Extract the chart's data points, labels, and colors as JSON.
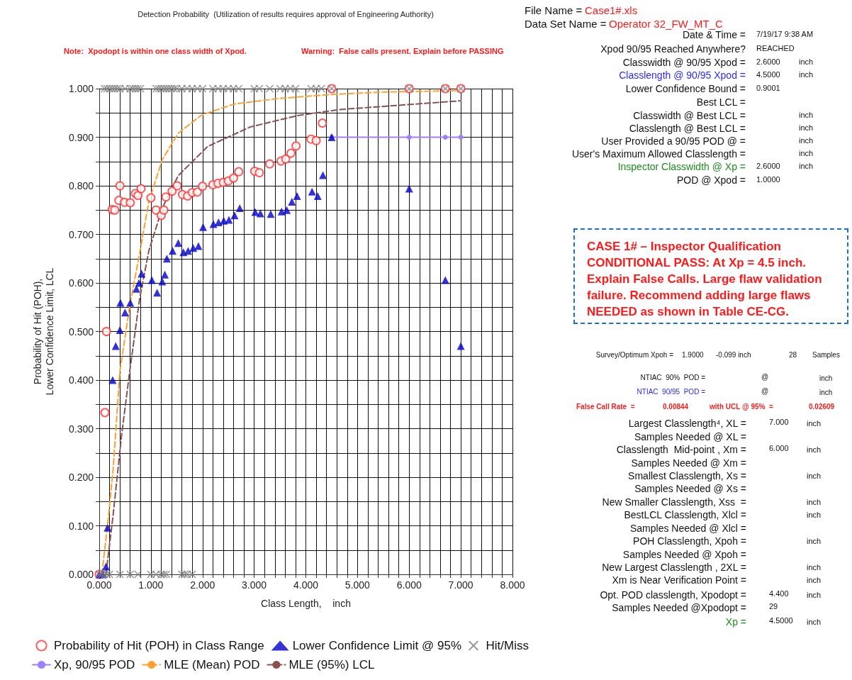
{
  "chart_data": {
    "type": "scatter",
    "title": "Detection Probability  (Utilization of results requires approval of Engineering Authority)",
    "xlabel": "Class Length,    inch",
    "ylabel": "Probability of Hit (POH),\nLower Confidence Limit, LCL",
    "xlim": [
      0,
      8
    ],
    "ylim": [
      0,
      1
    ],
    "xticks": [
      {
        "value": 0,
        "label": "0.000"
      },
      {
        "value": 0.2,
        "label": null
      },
      {
        "value": 0.4,
        "label": null
      },
      {
        "value": 0.6,
        "label": null
      },
      {
        "value": 0.8,
        "label": null
      },
      {
        "value": 1,
        "label": "1.000"
      },
      {
        "value": 1.2,
        "label": null
      },
      {
        "value": 1.4,
        "label": null
      },
      {
        "value": 1.6,
        "label": null
      },
      {
        "value": 1.8,
        "label": null
      },
      {
        "value": 2,
        "label": "2.000"
      },
      {
        "value": 2.2,
        "label": null
      },
      {
        "value": 2.4,
        "label": null
      },
      {
        "value": 2.6,
        "label": null
      },
      {
        "value": 2.8,
        "label": null
      },
      {
        "value": 3,
        "label": "3.000"
      },
      {
        "value": 3.2,
        "label": null
      },
      {
        "value": 3.4,
        "label": null
      },
      {
        "value": 3.6,
        "label": null
      },
      {
        "value": 3.8,
        "label": null
      },
      {
        "value": 4,
        "label": "4.000"
      },
      {
        "value": 4.2,
        "label": null
      },
      {
        "value": 4.4,
        "label": null
      },
      {
        "value": 4.6,
        "label": null
      },
      {
        "value": 4.8,
        "label": null
      },
      {
        "value": 5,
        "label": "5.000"
      },
      {
        "value": 5.2,
        "label": null
      },
      {
        "value": 5.4,
        "label": null
      },
      {
        "value": 5.6,
        "label": null
      },
      {
        "value": 5.8,
        "label": null
      },
      {
        "value": 6,
        "label": "6.000"
      },
      {
        "value": 6.2,
        "label": null
      },
      {
        "value": 6.4,
        "label": null
      },
      {
        "value": 6.6,
        "label": null
      },
      {
        "value": 6.8,
        "label": null
      },
      {
        "value": 7,
        "label": "7.000"
      },
      {
        "value": 7.2,
        "label": null
      },
      {
        "value": 7.4,
        "label": null
      },
      {
        "value": 7.6,
        "label": null
      },
      {
        "value": 7.8,
        "label": null
      },
      {
        "value": 8,
        "label": "8.000"
      }
    ],
    "yticks": [
      {
        "value": 0,
        "label": "0.000"
      },
      {
        "value": 0.05,
        "label": null
      },
      {
        "value": 0.1,
        "label": "0.100"
      },
      {
        "value": 0.15,
        "label": null
      },
      {
        "value": 0.2,
        "label": "0.200"
      },
      {
        "value": 0.25,
        "label": null
      },
      {
        "value": 0.3,
        "label": "0.300"
      },
      {
        "value": 0.35,
        "label": null
      },
      {
        "value": 0.4,
        "label": "0.400"
      },
      {
        "value": 0.45,
        "label": null
      },
      {
        "value": 0.5,
        "label": "0.500"
      },
      {
        "value": 0.55,
        "label": null
      },
      {
        "value": 0.6,
        "label": "0.600"
      },
      {
        "value": 0.65,
        "label": null
      },
      {
        "value": 0.7,
        "label": "0.700"
      },
      {
        "value": 0.75,
        "label": null
      },
      {
        "value": 0.8,
        "label": "0.800"
      },
      {
        "value": 0.85,
        "label": null
      },
      {
        "value": 0.9,
        "label": "0.900"
      },
      {
        "value": 0.95,
        "label": null
      },
      {
        "value": 1,
        "label": "1.000"
      }
    ],
    "grid": true,
    "legend": "bottom",
    "series": [
      {
        "name": "Probability of Hit (POH) in Class Range",
        "marker": "circle",
        "color": "#ff3333",
        "x": [
          0,
          0.11,
          0.14,
          0.25,
          0.3,
          0.38,
          0.4,
          0.49,
          0.6,
          0.7,
          0.75,
          0.81,
          1,
          1.1,
          1.2,
          1.25,
          1.29,
          1.41,
          1.51,
          1.61,
          1.71,
          1.8,
          1.9,
          2,
          2.2,
          2.3,
          2.4,
          2.5,
          2.6,
          2.7,
          3.01,
          3.1,
          3.3,
          3.52,
          3.61,
          3.71,
          3.81,
          4.1,
          4.2,
          4.32,
          4.5,
          6,
          6.7,
          7
        ],
        "values": [
          0,
          0.333,
          0.5,
          0.751,
          0.75,
          0.77,
          0.8,
          0.766,
          0.765,
          0.784,
          0.78,
          0.794,
          0.775,
          0.75,
          0.739,
          0.75,
          0.777,
          0.789,
          0.8,
          0.782,
          0.779,
          0.786,
          0.787,
          0.799,
          0.802,
          0.805,
          0.807,
          0.81,
          0.816,
          0.829,
          0.83,
          0.827,
          0.845,
          0.851,
          0.855,
          0.867,
          0.882,
          0.896,
          0.893,
          0.929,
          1,
          1,
          1,
          1
        ]
      },
      {
        "name": "Lower Confidence Limit @ 95%",
        "marker": "triangle",
        "color": "#0000cc",
        "x": [
          0,
          0.07,
          0.13,
          0.16,
          0.26,
          0.32,
          0.4,
          0.41,
          0.5,
          0.6,
          0.72,
          0.77,
          0.82,
          1.02,
          1.12,
          1.22,
          1.27,
          1.31,
          1.42,
          1.53,
          1.63,
          1.72,
          1.82,
          1.92,
          2.01,
          2.21,
          2.31,
          2.41,
          2.51,
          2.62,
          2.72,
          3.02,
          3.12,
          3.32,
          3.53,
          3.63,
          3.73,
          3.83,
          4.12,
          4.23,
          4.33,
          4.5,
          6,
          6.7,
          7
        ],
        "values": [
          0,
          0,
          0.016,
          0.096,
          0.4,
          0.47,
          0.503,
          0.559,
          0.539,
          0.559,
          0.588,
          0.6,
          0.619,
          0.606,
          0.58,
          0.603,
          0.617,
          0.65,
          0.666,
          0.682,
          0.663,
          0.666,
          0.672,
          0.676,
          0.715,
          0.721,
          0.725,
          0.728,
          0.73,
          0.739,
          0.754,
          0.746,
          0.743,
          0.742,
          0.747,
          0.75,
          0.767,
          0.779,
          0.788,
          0.779,
          0.822,
          0.9,
          0.794,
          0.606,
          0.47
        ]
      },
      {
        "name": "Hit/Miss",
        "marker": "cross",
        "color": "#808080",
        "x": [
          0.1,
          0.15,
          0.2,
          0.25,
          0.3,
          0.35,
          0.4,
          0.5,
          0.6,
          0.65,
          0.7,
          0.75,
          0.8,
          1.1,
          1.15,
          1.2,
          1.25,
          1.3,
          1.35,
          1.4,
          1.45,
          1.5,
          1.6,
          1.7,
          1.8,
          1.9,
          2,
          2.2,
          2.3,
          2.4,
          2.5,
          2.6,
          2.7,
          3,
          3.1,
          3.3,
          3.5,
          3.6,
          3.7,
          3.8,
          4.1,
          4.2,
          4.3,
          4.5,
          6,
          6.7,
          7,
          0,
          0.05,
          0.1,
          0.15,
          0.2,
          0.4,
          0.6,
          0.75,
          1,
          1.1,
          1.2,
          1.25,
          1.3,
          1.6,
          1.65,
          1.7,
          1.8
        ],
        "values": [
          1,
          1,
          1,
          1,
          1,
          1,
          1,
          1,
          1,
          1,
          1,
          1,
          1,
          1,
          1,
          1,
          1,
          1,
          1,
          1,
          1,
          1,
          1,
          1,
          1,
          1,
          1,
          1,
          1,
          1,
          1,
          1,
          1,
          1,
          1,
          1,
          1,
          1,
          1,
          1,
          1,
          1,
          1,
          1,
          1,
          1,
          1,
          0,
          0,
          0,
          0,
          0,
          0,
          0,
          0,
          0,
          0,
          0,
          0,
          0,
          0,
          0,
          0,
          0
        ]
      },
      {
        "name": "Xp, 90/95 POD",
        "type": "line",
        "marker": "circle",
        "line_style": "solid",
        "color": "#a080ff",
        "x": [
          4.5,
          6,
          6.7,
          7
        ],
        "values": [
          0.9,
          0.9,
          0.9,
          0.9
        ]
      },
      {
        "name": "MLE (Mean) POD",
        "type": "line",
        "marker": "none",
        "line_style": "dashed",
        "color": "#ffa030",
        "x": [
          0.05,
          0.16,
          0.27,
          0.4,
          0.59,
          0.78,
          0.96,
          1.22,
          1.53,
          1.97,
          2.6,
          3.5,
          4.5,
          5.5,
          7
        ],
        "values": [
          0,
          0.1,
          0.217,
          0.418,
          0.552,
          0.66,
          0.767,
          0.854,
          0.908,
          0.945,
          0.968,
          0.98,
          0.988,
          0.993,
          0.996
        ]
      },
      {
        "name": "MLE (95%) LCL",
        "type": "line",
        "marker": "none",
        "line_style": "dashed",
        "color": "#8b5050",
        "x": [
          0.13,
          0.27,
          0.43,
          0.59,
          0.78,
          0.96,
          1.22,
          1.53,
          2.1,
          2.92,
          3.86,
          4.66,
          7
        ],
        "values": [
          0,
          0.123,
          0.284,
          0.418,
          0.566,
          0.666,
          0.754,
          0.821,
          0.881,
          0.921,
          0.945,
          0.957,
          0.975
        ]
      }
    ],
    "annotations": [
      "Note:  Xpodopt is within one class width of Xpod.",
      "Warning:  False calls present. Explain before PASSING",
      "File Name =",
      "Case1#.xls",
      "Data Set Name =",
      "Operator 32_FW_MT_C",
      "Date & Time =",
      "7/19/17 9:38 AM",
      "Xpod 90/95 Reached Anywhere?",
      "REACHED",
      "Classwidth @ 90/95 Xpod =",
      "2.6000",
      "inch",
      "Classlength @ 90/95 Xpod =",
      "4.5000",
      "inch",
      "Lower Confidence Bound =",
      "0.9001",
      "Best LCL =",
      "Classwidth @ Best LCL =",
      "inch",
      "Classlength @ Best LCL =",
      "inch",
      "User Provided a 90/95 POD @ =",
      "inch",
      "User's Maximum Allowed Classlength =",
      "inch",
      "Inspector Classwidth @ Xp =",
      "2.6000",
      "inch",
      "POD @ Xpod =",
      "1.0000",
      "CASE 1# – Inspector Qualification CONDITIONAL PASS: At Xp = 4.5 inch. Explain False Calls. Large flaw validation failure. Recommend adding large flaws NEEDED as shown in Table CE-CG.",
      "Survey/Optimum Xpoh =",
      "1.9000",
      "-0.099 inch",
      "28",
      "Samples",
      "NTIAC  90%  POD =",
      "@",
      "inch",
      "NTIAC  90/95  POD =",
      "@",
      "inch",
      "False Call Rate  =",
      "0.00844",
      "with UCL @ 95%  =",
      "0.02609",
      "Largest Classlength⁴, XL =",
      "7.000",
      "inch",
      "Samples Needed @ XL =",
      "Classlength  Mid-point , Xm =",
      "6.000",
      "inch",
      "Samples Needed @ Xm =",
      "Smallest Classlength, Xs =",
      "inch",
      "Samples Needed @ Xs =",
      "New Smaller Classlength, Xss  =",
      "inch",
      "BestLCL Classlength, Xlcl =",
      "inch",
      "Samples Needed @ Xlcl =",
      "POH Classlength, Xpoh =",
      "inch",
      "Samples Needed @ Xpoh =",
      "New Largest Classlength , 2XL =",
      "inch",
      "Xm is Near Verification Point =",
      "inch",
      "Opt. POD classlength, Xpodopt =",
      "4.400",
      "inch",
      "Samples Needed @Xpodopt =",
      "29",
      "Xp =",
      "4.5000",
      "inch"
    ]
  }
}
